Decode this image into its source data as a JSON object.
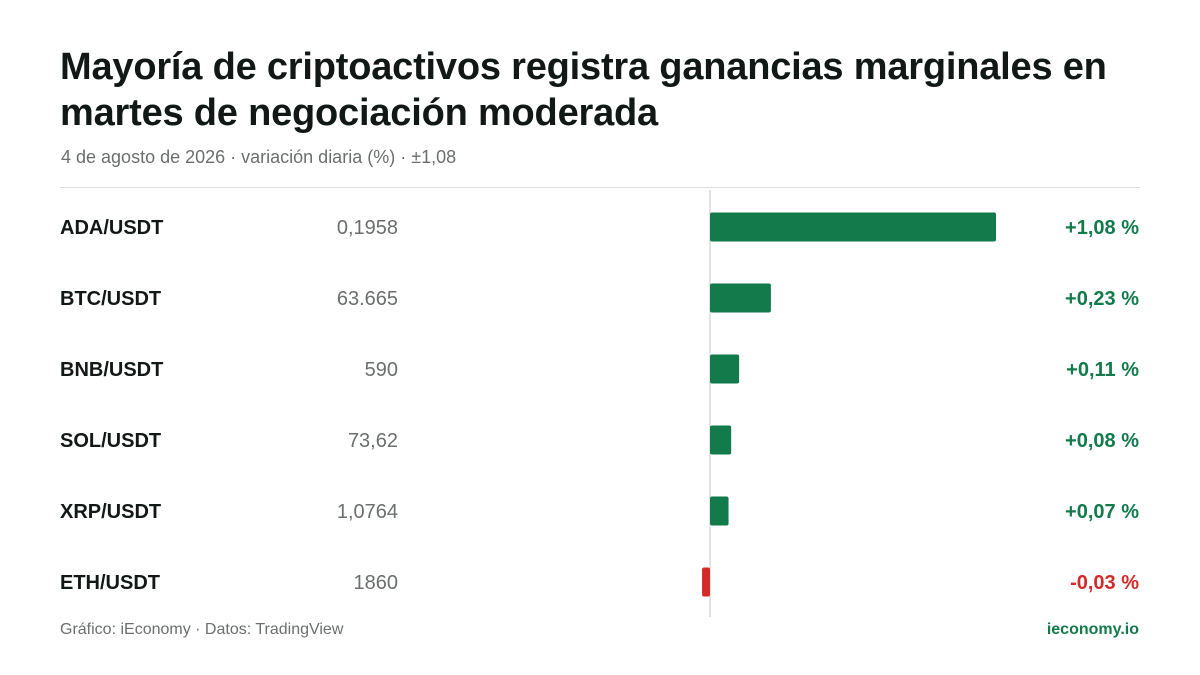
{
  "header": {
    "title": "Mayoría de criptoactivos registra ganancias marginales en martes de negociación moderada",
    "subtitle": "4 de agosto de 2026 · variación diaria (%) · ±1,08"
  },
  "footer": {
    "source": "Gráfico: iEconomy · Datos: TradingView",
    "brand": "ieconomy.io"
  },
  "colors": {
    "positive": "#127a4b",
    "negative": "#d42a2a",
    "zero_line": "#d9dbd9"
  },
  "chart_data": {
    "type": "bar",
    "orientation": "horizontal",
    "title": "Mayoría de criptoactivos registra ganancias marginales en martes de negociación moderada",
    "subtitle": "4 de agosto de 2026 · variación diaria (%) · ±1,08",
    "xlim": [
      -1.08,
      1.08
    ],
    "categories": [
      "ADA/USDT",
      "BTC/USDT",
      "BNB/USDT",
      "SOL/USDT",
      "XRP/USDT",
      "ETH/USDT"
    ],
    "prices": [
      "0,1958",
      "63.665",
      "590",
      "73,62",
      "1,0764",
      "1860"
    ],
    "values": [
      1.08,
      0.23,
      0.11,
      0.08,
      0.07,
      -0.03
    ],
    "value_labels": [
      "+1,08 %",
      "+0,23 %",
      "+0,11 %",
      "+0,08 %",
      "+0,07 %",
      "-0,03 %"
    ]
  }
}
